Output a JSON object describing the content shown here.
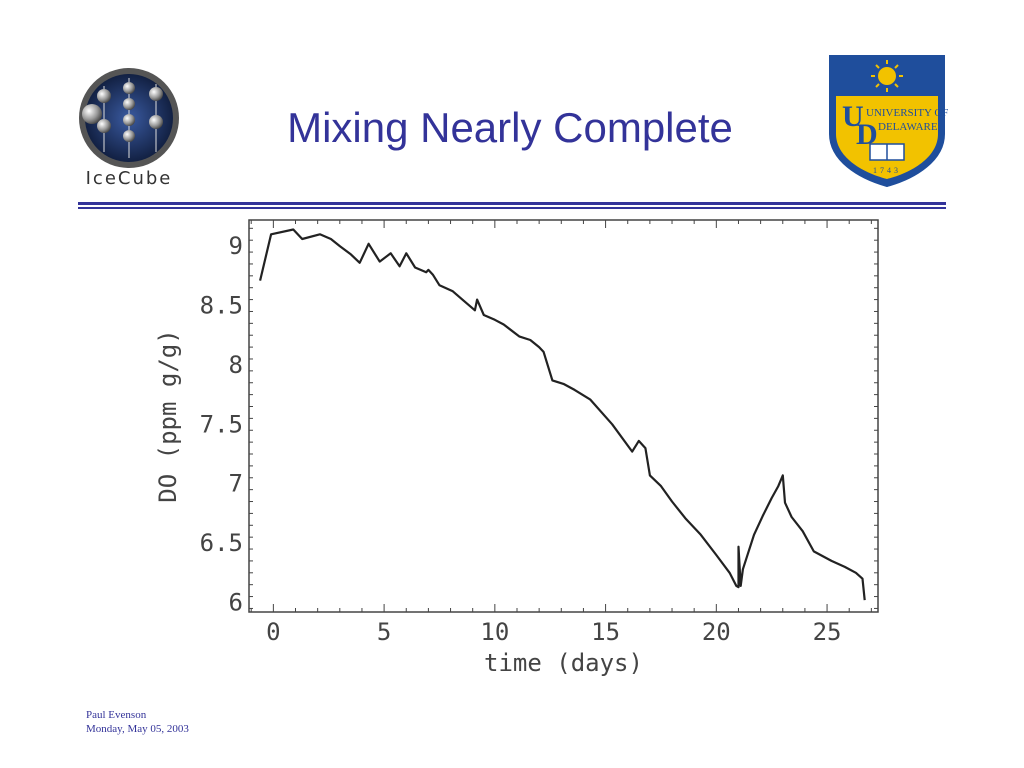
{
  "slide": {
    "title": "Mixing Nearly Complete",
    "footer_author": "Paul Evenson",
    "footer_date": "Monday, May 05, 2003"
  },
  "logos": {
    "left": {
      "name": "IceCube",
      "text": "IceCube"
    },
    "right": {
      "name": "University of Delaware",
      "text_university": "UNIVERSITY OF",
      "text_delaware": "DELAWARE",
      "year": "1743"
    }
  },
  "colors": {
    "title": "#333399",
    "rule": "#333399",
    "line": "#222222",
    "ud_blue": "#1f4e9c",
    "ud_gold": "#f2c200"
  },
  "chart_data": {
    "type": "line",
    "title": "",
    "xlabel": "time (days)",
    "ylabel": "DO (ppm g/g)",
    "xlim": [
      -1.1,
      27.3
    ],
    "ylim": [
      5.92,
      9.22
    ],
    "xticks": [
      0,
      5,
      10,
      15,
      20,
      25
    ],
    "yticks": [
      6,
      6.5,
      7,
      7.5,
      8,
      8.5,
      9
    ],
    "xtick_labels": [
      "0",
      "5",
      "10",
      "15",
      "20",
      "25"
    ],
    "ytick_labels": [
      "6",
      "6.5",
      "7",
      "7.5",
      "8",
      "8.5",
      "9"
    ],
    "grid": false,
    "series": [
      {
        "x": [
          -0.6,
          -0.1,
          0.9,
          1.3,
          2.1,
          2.6,
          3.0,
          3.5,
          3.9,
          4.3,
          4.8,
          5.3,
          5.7,
          6.0,
          6.4,
          6.9,
          7.0,
          7.2,
          7.5,
          8.1,
          8.6,
          9.1,
          9.2,
          9.5,
          10.0,
          10.4,
          11.1,
          11.6,
          12.0,
          12.2,
          12.6,
          13.1,
          13.6,
          14.3,
          15.3,
          16.2,
          16.5,
          16.8,
          17.0,
          17.5,
          18.0,
          18.6,
          19.3,
          20.0,
          20.6,
          20.9,
          21.0,
          21.0,
          21.1,
          21.2,
          21.7,
          22.1,
          22.5,
          22.8,
          23.0,
          23.1,
          23.4,
          23.9,
          24.4,
          25.2,
          25.8,
          26.3,
          26.6,
          26.7
        ],
        "y": [
          8.71,
          9.1,
          9.14,
          9.06,
          9.1,
          9.06,
          9.0,
          8.93,
          8.86,
          9.02,
          8.87,
          8.94,
          8.83,
          8.94,
          8.82,
          8.78,
          8.8,
          8.76,
          8.67,
          8.62,
          8.54,
          8.46,
          8.55,
          8.42,
          8.38,
          8.34,
          8.24,
          8.21,
          8.15,
          8.11,
          7.87,
          7.84,
          7.79,
          7.71,
          7.5,
          7.27,
          7.36,
          7.3,
          7.07,
          6.98,
          6.85,
          6.71,
          6.57,
          6.4,
          6.25,
          6.14,
          6.13,
          6.47,
          6.14,
          6.28,
          6.57,
          6.73,
          6.88,
          6.98,
          7.07,
          6.84,
          6.72,
          6.6,
          6.43,
          6.35,
          6.3,
          6.25,
          6.2,
          6.02
        ]
      }
    ]
  }
}
